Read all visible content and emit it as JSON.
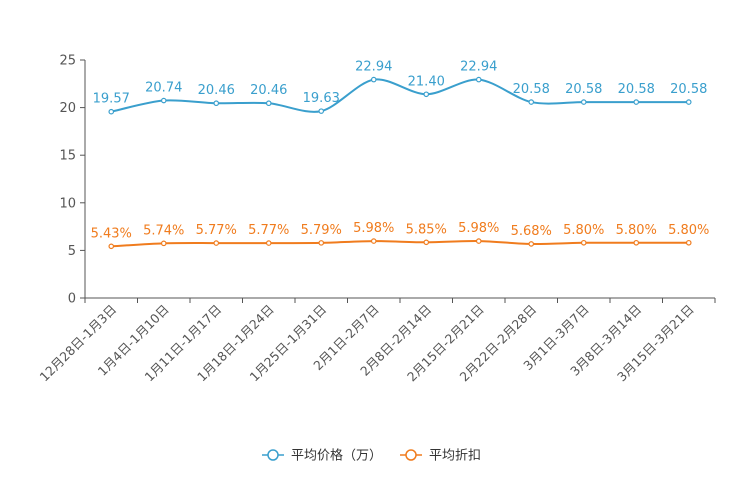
{
  "chart_data": {
    "type": "line",
    "categories": [
      "12月28日-1月3日",
      "1月4日-1月10日",
      "1月11日-1月17日",
      "1月18日-1月24日",
      "1月25日-1月31日",
      "2月1日-2月7日",
      "2月8日-2月14日",
      "2月15日-2月21日",
      "2月22日-2月28日",
      "3月1日-3月7日",
      "3月8日-3月14日",
      "3月15日-3月21日"
    ],
    "ylim": [
      0,
      25
    ],
    "yticks": [
      0,
      5,
      10,
      15,
      20,
      25
    ],
    "series": [
      {
        "name": "平均价格（万）",
        "color": "#3a9fcd",
        "values": [
          19.57,
          20.74,
          20.46,
          20.46,
          19.63,
          22.94,
          21.4,
          22.94,
          20.58,
          20.58,
          20.58,
          20.58
        ],
        "labels": [
          "19.57",
          "20.74",
          "20.46",
          "20.46",
          "19.63",
          "22.94",
          "21.40",
          "22.94",
          "20.58",
          "20.58",
          "20.58",
          "20.58"
        ]
      },
      {
        "name": "平均折扣",
        "color": "#f07c1e",
        "values": [
          5.43,
          5.74,
          5.77,
          5.77,
          5.79,
          5.98,
          5.85,
          5.98,
          5.68,
          5.8,
          5.8,
          5.8
        ],
        "labels": [
          "5.43%",
          "5.74%",
          "5.77%",
          "5.77%",
          "5.79%",
          "5.98%",
          "5.85%",
          "5.98%",
          "5.68%",
          "5.80%",
          "5.80%",
          "5.80%"
        ]
      }
    ],
    "legend_position": "bottom-center"
  }
}
